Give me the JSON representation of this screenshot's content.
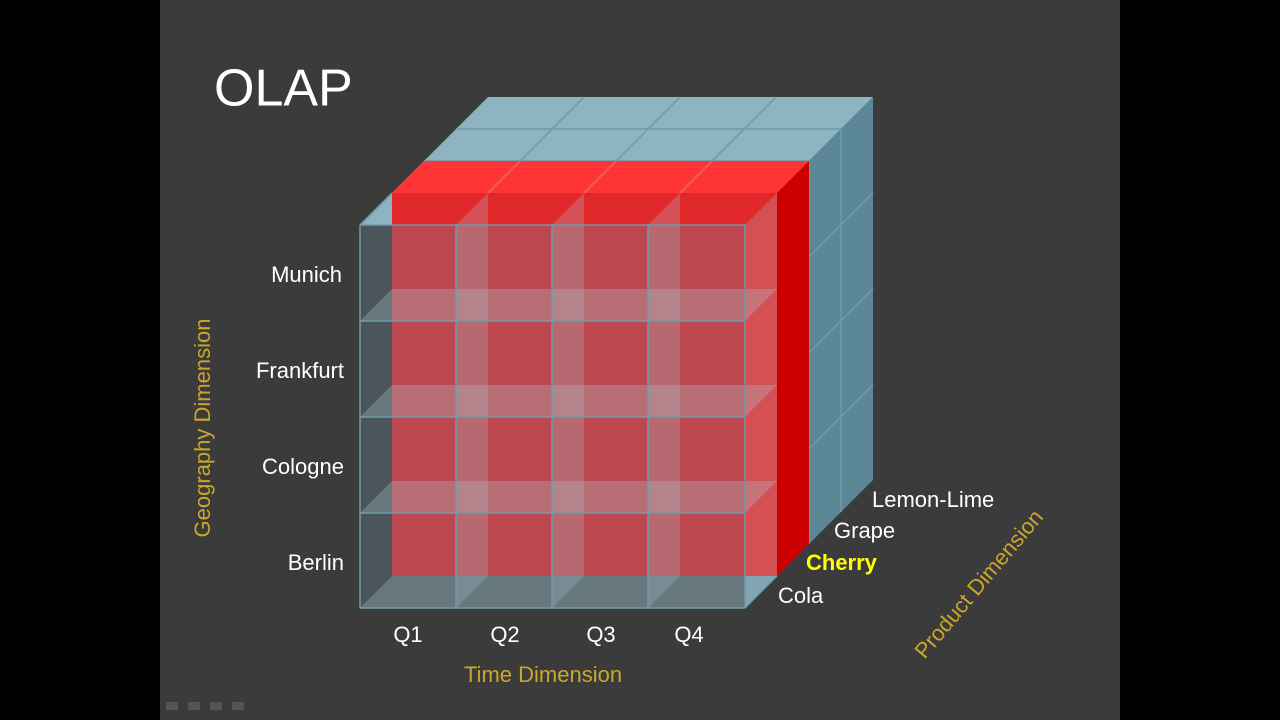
{
  "title": "OLAP",
  "geography": {
    "label": "Geography Dimension",
    "members": [
      "Munich",
      "Frankfurt",
      "Cologne",
      "Berlin"
    ]
  },
  "time": {
    "label": "Time Dimension",
    "members": [
      "Q1",
      "Q2",
      "Q3",
      "Q4"
    ]
  },
  "product": {
    "label": "Product Dimension",
    "members": [
      "Lemon-Lime",
      "Grape",
      "Cherry",
      "Cola"
    ]
  }
}
